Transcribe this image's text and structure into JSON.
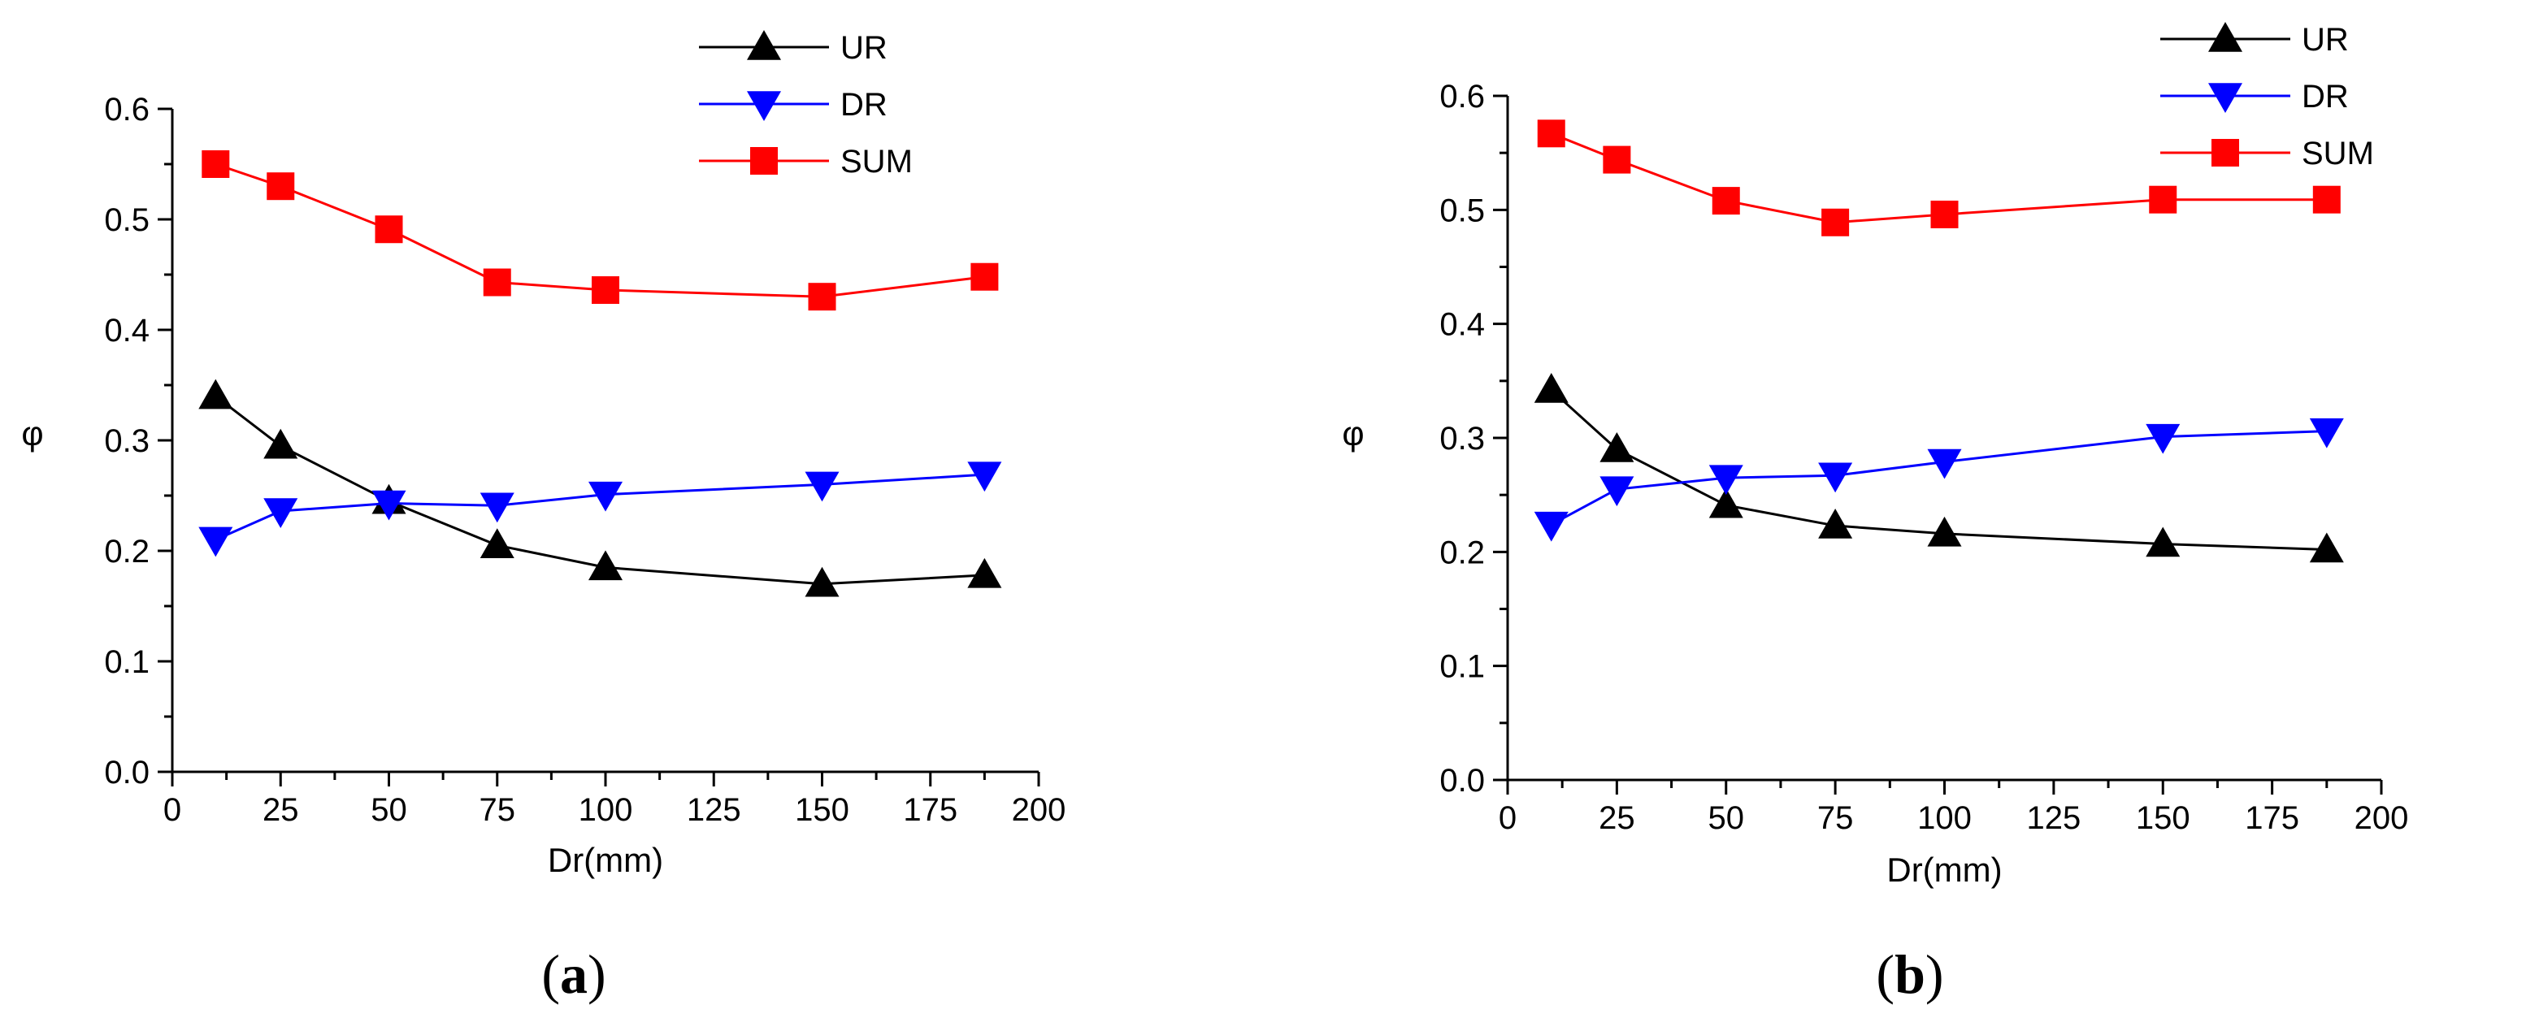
{
  "chart_data": [
    {
      "type": "line",
      "panel_label": "a",
      "xlabel": "Dr(mm)",
      "ylabel": "φ",
      "xlim": [
        0,
        200
      ],
      "ylim": [
        0.0,
        0.6
      ],
      "xticks": [
        0,
        25,
        50,
        75,
        100,
        125,
        150,
        175,
        200
      ],
      "yticks": [
        "0.0",
        "0.1",
        "0.2",
        "0.3",
        "0.4",
        "0.5",
        "0.6"
      ],
      "x": [
        10,
        25,
        50,
        75,
        100,
        150,
        187.5
      ],
      "series": [
        {
          "name": "UR",
          "color": "#000000",
          "marker": "triangle-up",
          "values": [
            0.34,
            0.295,
            0.245,
            0.205,
            0.185,
            0.17,
            0.178
          ]
        },
        {
          "name": "DR",
          "color": "#0000ff",
          "marker": "triangle-down",
          "values": [
            0.21,
            0.236,
            0.243,
            0.241,
            0.251,
            0.26,
            0.269
          ]
        },
        {
          "name": "SUM",
          "color": "#ff0000",
          "marker": "square",
          "values": [
            0.55,
            0.53,
            0.491,
            0.443,
            0.436,
            0.43,
            0.448
          ]
        }
      ],
      "legend_position": "top-right"
    },
    {
      "type": "line",
      "panel_label": "b",
      "xlabel": "Dr(mm)",
      "ylabel": "φ",
      "xlim": [
        0,
        200
      ],
      "ylim": [
        0.0,
        0.6
      ],
      "xticks": [
        0,
        25,
        50,
        75,
        100,
        125,
        150,
        175,
        200
      ],
      "yticks": [
        "0.0",
        "0.1",
        "0.2",
        "0.3",
        "0.4",
        "0.5",
        "0.6"
      ],
      "x": [
        10,
        25,
        50,
        75,
        100,
        150,
        187.5
      ],
      "series": [
        {
          "name": "UR",
          "color": "#000000",
          "marker": "triangle-up",
          "values": [
            0.342,
            0.29,
            0.241,
            0.223,
            0.216,
            0.207,
            0.202
          ]
        },
        {
          "name": "DR",
          "color": "#0000ff",
          "marker": "triangle-down",
          "values": [
            0.224,
            0.255,
            0.265,
            0.267,
            0.279,
            0.301,
            0.306
          ]
        },
        {
          "name": "SUM",
          "color": "#ff0000",
          "marker": "square",
          "values": [
            0.567,
            0.544,
            0.508,
            0.489,
            0.496,
            0.509,
            0.509
          ]
        }
      ],
      "legend_position": "top-right"
    }
  ]
}
